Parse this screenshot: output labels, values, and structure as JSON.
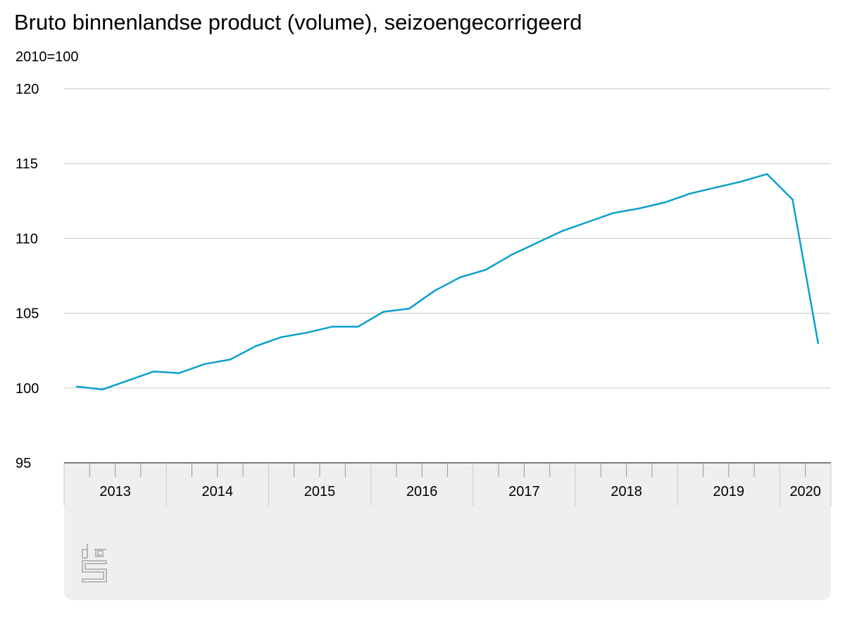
{
  "chart_data": {
    "type": "line",
    "title": "Bruto binnenlandse product (volume), seizoengecorrigeerd",
    "subtitle": "2010=100",
    "ylim": [
      95,
      120
    ],
    "y_ticks": [
      "120",
      "115",
      "110",
      "105",
      "100",
      "95"
    ],
    "grid": true,
    "line_color": "#0aa0cc",
    "years": [
      "2013",
      "2014",
      "2015",
      "2016",
      "2017",
      "2018",
      "2019",
      "2020"
    ],
    "x": [
      "2013 Q1",
      "2013 Q2",
      "2013 Q3",
      "2013 Q4",
      "2014 Q1",
      "2014 Q2",
      "2014 Q3",
      "2014 Q4",
      "2015 Q1",
      "2015 Q2",
      "2015 Q3",
      "2015 Q4",
      "2016 Q1",
      "2016 Q2",
      "2016 Q3",
      "2016 Q4",
      "2017 Q1",
      "2017 Q2",
      "2017 Q3",
      "2017 Q4",
      "2018 Q1",
      "2018 Q2",
      "2018 Q3",
      "2018 Q4",
      "2019 Q1",
      "2019 Q2",
      "2019 Q3",
      "2019 Q4",
      "2020 Q1",
      "2020 Q2"
    ],
    "values": [
      100.1,
      99.9,
      100.5,
      101.1,
      101.0,
      101.6,
      101.9,
      102.8,
      103.4,
      103.7,
      104.1,
      104.1,
      105.1,
      105.3,
      106.5,
      107.4,
      107.9,
      108.9,
      109.7,
      110.5,
      111.1,
      111.7,
      112.0,
      112.4,
      113.0,
      113.4,
      113.8,
      114.3,
      112.6,
      103.0
    ]
  }
}
